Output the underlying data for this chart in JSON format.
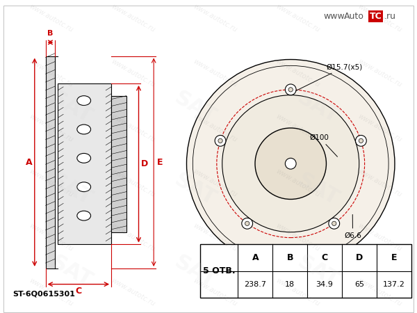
{
  "bg_color": "#ffffff",
  "watermark_text": "www.AutoTC.ru",
  "part_code": "ST-6Q0615301",
  "bolts": 5,
  "bolts_label": "5 ОТВ.",
  "table_headers": [
    "A",
    "B",
    "C",
    "D",
    "E"
  ],
  "table_values": [
    "238.7",
    "18",
    "34.9",
    "65",
    "137.2"
  ],
  "dim_A_label": "A",
  "dim_B_label": "B",
  "dim_C_label": "C",
  "dim_D_label": "D",
  "dim_E_label": "E",
  "disc_outer_dia": "Ø15.7(x5)",
  "disc_center_dia": "Ø100",
  "disc_bolt_dia": "Ø6.6",
  "line_color": "#000000",
  "red_color": "#cc0000",
  "watermark_color": "#cccccc"
}
